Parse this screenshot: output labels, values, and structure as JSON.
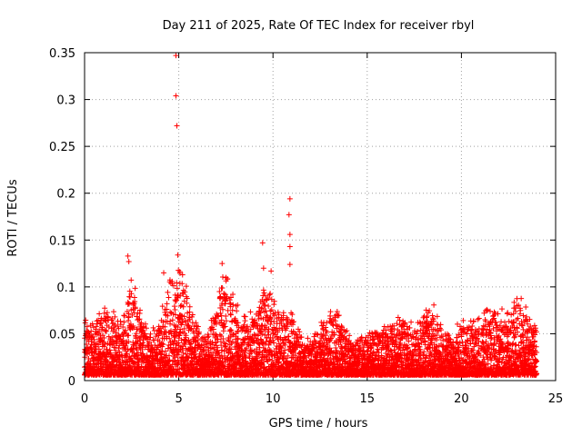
{
  "chart_data": {
    "type": "scatter",
    "title": "Day 211 of 2025, Rate Of TEC Index for receiver rbyl",
    "xlabel": "GPS time / hours",
    "ylabel": "ROTI / TECUs",
    "xlim": [
      0,
      25
    ],
    "ylim": [
      0,
      0.35
    ],
    "xticks": [
      0,
      5,
      10,
      15,
      20,
      25
    ],
    "yticks": [
      0,
      0.05,
      0.1,
      0.15,
      0.2,
      0.25,
      0.3,
      0.35
    ],
    "grid": true,
    "marker": "+",
    "color": "#ff0000",
    "series": [
      {
        "name": "ROTI",
        "envelope_hours": [
          0,
          0.5,
          1,
          1.5,
          2,
          2.5,
          3,
          3.5,
          4,
          4.5,
          5,
          5.5,
          6,
          6.5,
          7,
          7.5,
          8,
          8.5,
          9,
          9.5,
          10,
          10.5,
          11,
          11.5,
          12,
          12.5,
          13,
          13.5,
          14,
          14.5,
          15,
          15.5,
          16,
          16.5,
          17,
          17.5,
          18,
          18.5,
          19,
          19.5,
          20,
          20.5,
          21,
          21.5,
          22,
          22.5,
          23,
          23.5,
          24
        ],
        "envelope_roti": [
          0.055,
          0.05,
          0.07,
          0.065,
          0.05,
          0.1,
          0.06,
          0.045,
          0.06,
          0.1,
          0.11,
          0.08,
          0.05,
          0.045,
          0.07,
          0.11,
          0.075,
          0.06,
          0.065,
          0.09,
          0.08,
          0.06,
          0.065,
          0.04,
          0.035,
          0.05,
          0.065,
          0.065,
          0.04,
          0.04,
          0.045,
          0.05,
          0.045,
          0.055,
          0.06,
          0.05,
          0.065,
          0.07,
          0.05,
          0.045,
          0.05,
          0.055,
          0.06,
          0.07,
          0.06,
          0.07,
          0.08,
          0.06,
          0.05
        ],
        "outliers": [
          {
            "x": 4.85,
            "y": 0.347
          },
          {
            "x": 4.85,
            "y": 0.304
          },
          {
            "x": 4.9,
            "y": 0.272
          },
          {
            "x": 10.9,
            "y": 0.194
          },
          {
            "x": 10.85,
            "y": 0.177
          },
          {
            "x": 10.9,
            "y": 0.156
          },
          {
            "x": 10.9,
            "y": 0.143
          },
          {
            "x": 9.45,
            "y": 0.147
          },
          {
            "x": 10.9,
            "y": 0.124
          },
          {
            "x": 2.3,
            "y": 0.133
          },
          {
            "x": 2.35,
            "y": 0.127
          },
          {
            "x": 4.95,
            "y": 0.134
          },
          {
            "x": 7.3,
            "y": 0.125
          },
          {
            "x": 9.5,
            "y": 0.12
          },
          {
            "x": 9.9,
            "y": 0.117
          },
          {
            "x": 4.2,
            "y": 0.115
          },
          {
            "x": 5.2,
            "y": 0.113
          }
        ]
      }
    ]
  }
}
